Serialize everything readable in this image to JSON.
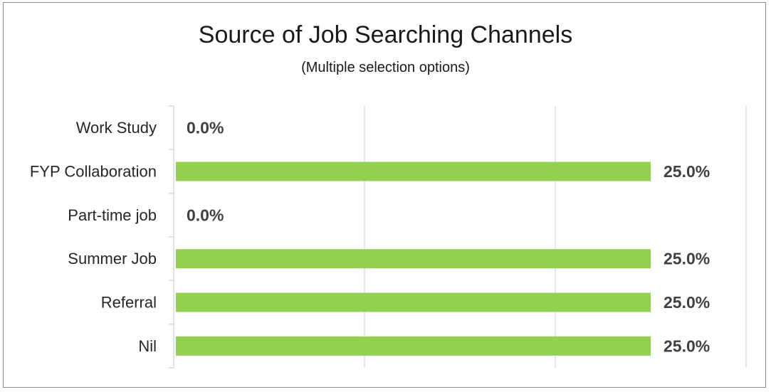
{
  "chart_data": {
    "type": "bar",
    "orientation": "horizontal",
    "title": "Source of Job Searching Channels",
    "subtitle": "(Multiple selection options)",
    "categories": [
      "Work Study",
      "FYP Collaboration",
      "Part-time job",
      "Summer Job",
      "Referral",
      "Nil"
    ],
    "values": [
      0.0,
      25.0,
      0.0,
      25.0,
      25.0,
      25.0
    ],
    "value_labels": [
      "0.0%",
      "25.0%",
      "0.0%",
      "25.0%",
      "25.0%",
      "25.0%"
    ],
    "xlim": [
      0,
      30
    ],
    "grid": true,
    "legend": "none",
    "bar_color": "#92d050",
    "gridline_color": "#d9e1f2"
  }
}
